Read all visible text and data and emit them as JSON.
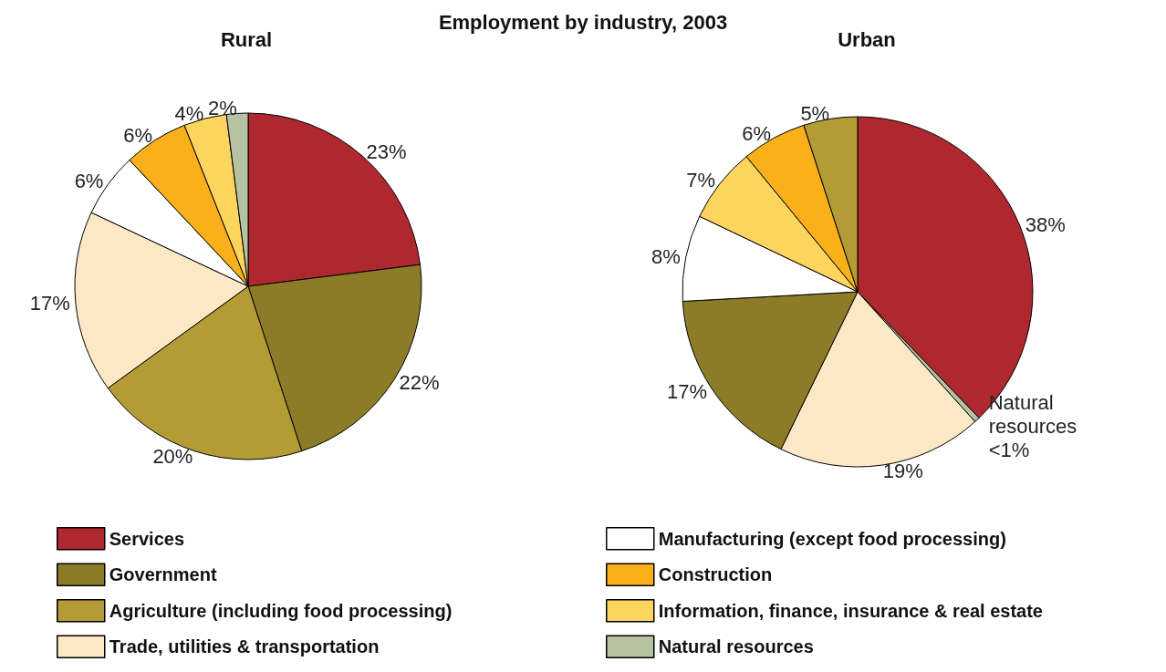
{
  "chart_data": [
    {
      "type": "pie",
      "title": "Employment by industry, 2003",
      "subtitle": "Rural",
      "legend": "bottom",
      "categories": [
        "Services",
        "Government",
        "Agriculture (including food processing)",
        "Trade, utilities & transportation",
        "Manufacturing (except food processing)",
        "Construction",
        "Information, finance, insurance & real estate",
        "Natural resources"
      ],
      "values": [
        23,
        22,
        20,
        17,
        6,
        6,
        4,
        2
      ],
      "colors": [
        "#b0282f",
        "#8c7c28",
        "#b39b35",
        "#fde8c6",
        "#ffffff",
        "#f9b01a",
        "#fdd55e",
        "#b5c3a3"
      ],
      "value_labels": [
        "23%",
        "22%",
        "20%",
        "17%",
        "6%",
        "6%",
        "4%",
        "2%"
      ]
    },
    {
      "type": "pie",
      "subtitle": "Urban",
      "categories": [
        null,
        null,
        null,
        null,
        null,
        null,
        null,
        null
      ],
      "values": [
        38,
        0.5,
        19,
        17,
        8,
        7,
        6,
        5
      ],
      "colors": [
        "#b0282f",
        "#b5c3a3",
        "#fde8c6",
        "#8c7c28",
        "#ffffff",
        "#fdd55e",
        "#f9b01a",
        "#b39b35"
      ],
      "value_labels": [
        "38%",
        "Natural resources <1%",
        "19%",
        "17%",
        "8%",
        "7%",
        "6%",
        "5%"
      ]
    }
  ]
}
